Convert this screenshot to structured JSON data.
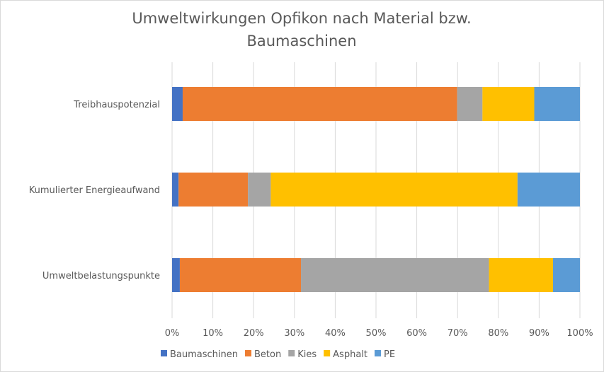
{
  "chart_data": {
    "type": "bar",
    "orientation": "horizontal",
    "stacked": "percent",
    "title": [
      "Umweltwirkungen Opfikon nach Material bzw.",
      "Baumaschinen"
    ],
    "xlabel": "",
    "ylabel": "",
    "xlim": [
      0,
      100
    ],
    "x_ticks": [
      "0%",
      "10%",
      "20%",
      "30%",
      "40%",
      "50%",
      "60%",
      "70%",
      "80%",
      "90%",
      "100%"
    ],
    "grid": true,
    "legend_position": "bottom",
    "categories": [
      "Treibhauspotenzial",
      "Kumulierter Energieaufwand",
      "Umweltbelastungspunkte"
    ],
    "series": [
      {
        "name": "Baumaschinen",
        "color": "#4472c4",
        "values": [
          2.6,
          1.6,
          1.9
        ]
      },
      {
        "name": "Beton",
        "color": "#ed7d31",
        "values": [
          67.3,
          17.0,
          29.7
        ]
      },
      {
        "name": "Kies",
        "color": "#a5a5a5",
        "values": [
          6.2,
          5.6,
          46.1
        ]
      },
      {
        "name": "Asphalt",
        "color": "#ffc000",
        "values": [
          12.7,
          60.5,
          15.7
        ]
      },
      {
        "name": "PE",
        "color": "#5b9bd5",
        "values": [
          11.2,
          15.3,
          6.6
        ]
      }
    ]
  }
}
